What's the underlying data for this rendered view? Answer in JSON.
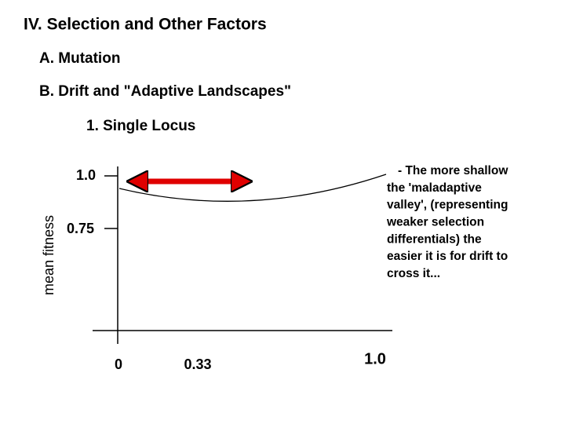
{
  "slide": {
    "title": "IV. Selection and Other Factors",
    "items": [
      "A. Mutation",
      "B. Drift and \"Adaptive Landscapes\""
    ],
    "subitem": "1. Single Locus",
    "figure": {
      "y_axis_label": "mean fitness",
      "y_tick_labels": [
        "1.0",
        "0.75"
      ],
      "x_tick_labels": [
        "0",
        "0.33",
        "1.0"
      ],
      "annotation": [
        "- The more shallow",
        "the 'maladaptive",
        "valley', (representing",
        "weaker selection",
        "differentials) the",
        "easier it is for drift to",
        "cross it..."
      ]
    }
  }
}
